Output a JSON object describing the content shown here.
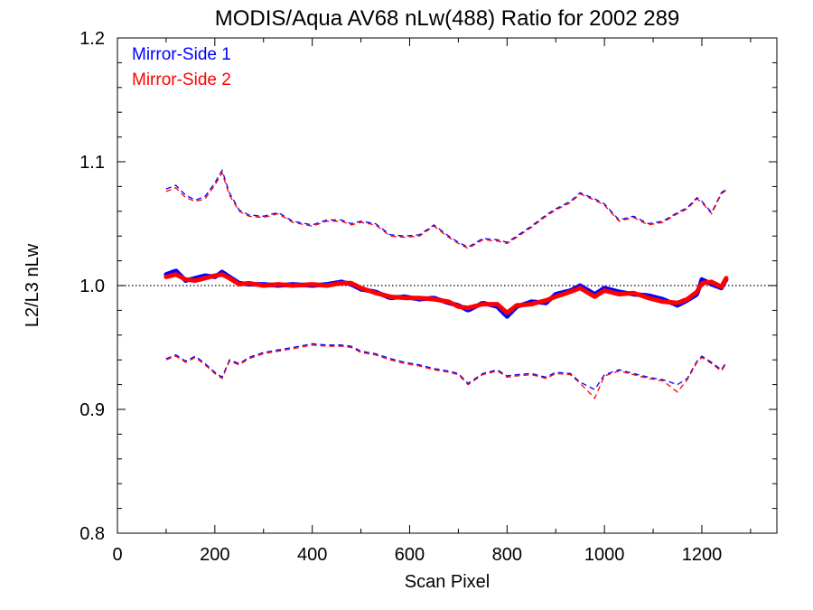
{
  "chart_data": {
    "type": "line",
    "title": "MODIS/Aqua AV68 nLw(488) Ratio for 2002 289",
    "xlabel": "Scan Pixel",
    "ylabel": "L2/L3 nLw",
    "xlim": [
      0,
      1354
    ],
    "ylim": [
      0.8,
      1.2
    ],
    "x_ticks": [
      "0",
      "200",
      "400",
      "600",
      "800",
      "1000",
      "1200"
    ],
    "y_ticks": [
      "0.8",
      "0.9",
      "1.0",
      "1.1",
      "1.2"
    ],
    "reference_line": 1.0,
    "legend_placement": "top-left",
    "colors": {
      "mirror_side_1": "#0000ff",
      "mirror_side_2": "#ff0000"
    },
    "series": [
      {
        "name": "Mirror-Side 1",
        "color": "#0000ff",
        "x": [
          100,
          120,
          140,
          160,
          180,
          200,
          215,
          230,
          250,
          270,
          300,
          330,
          360,
          400,
          430,
          460,
          480,
          500,
          530,
          560,
          590,
          620,
          650,
          680,
          700,
          720,
          750,
          780,
          800,
          820,
          850,
          880,
          900,
          930,
          950,
          980,
          1000,
          1030,
          1060,
          1090,
          1120,
          1150,
          1170,
          1190,
          1200,
          1220,
          1240,
          1250
        ],
        "mean": [
          1.009,
          1.012,
          1.004,
          1.006,
          1.008,
          1.007,
          1.011,
          1.007,
          1.002,
          1.001,
          1.001,
          1.0,
          1.001,
          1.0,
          1.001,
          1.003,
          1.001,
          0.997,
          0.995,
          0.99,
          0.991,
          0.989,
          0.99,
          0.986,
          0.984,
          0.98,
          0.986,
          0.983,
          0.975,
          0.983,
          0.987,
          0.986,
          0.993,
          0.996,
          1.0,
          0.993,
          0.998,
          0.995,
          0.993,
          0.992,
          0.989,
          0.984,
          0.988,
          0.993,
          1.005,
          1.001,
          0.998,
          1.005
        ],
        "upper": [
          1.078,
          1.081,
          1.073,
          1.069,
          1.072,
          1.083,
          1.093,
          1.075,
          1.061,
          1.057,
          1.056,
          1.059,
          1.052,
          1.049,
          1.053,
          1.053,
          1.05,
          1.052,
          1.05,
          1.041,
          1.04,
          1.041,
          1.049,
          1.04,
          1.035,
          1.031,
          1.038,
          1.037,
          1.035,
          1.04,
          1.048,
          1.057,
          1.062,
          1.068,
          1.075,
          1.07,
          1.066,
          1.053,
          1.056,
          1.05,
          1.052,
          1.059,
          1.063,
          1.071,
          1.068,
          1.059,
          1.075,
          1.078
        ],
        "lower": [
          0.941,
          0.944,
          0.939,
          0.943,
          0.937,
          0.93,
          0.926,
          0.94,
          0.937,
          0.942,
          0.946,
          0.948,
          0.95,
          0.953,
          0.952,
          0.952,
          0.951,
          0.947,
          0.945,
          0.941,
          0.938,
          0.936,
          0.933,
          0.931,
          0.929,
          0.921,
          0.929,
          0.932,
          0.927,
          0.928,
          0.929,
          0.926,
          0.93,
          0.929,
          0.922,
          0.916,
          0.928,
          0.932,
          0.929,
          0.926,
          0.924,
          0.92,
          0.925,
          0.939,
          0.943,
          0.938,
          0.932,
          0.938
        ]
      },
      {
        "name": "Mirror-Side 2",
        "color": "#ff0000",
        "x": [
          100,
          120,
          140,
          160,
          180,
          200,
          215,
          230,
          250,
          270,
          300,
          330,
          360,
          400,
          430,
          460,
          480,
          500,
          530,
          560,
          590,
          620,
          650,
          680,
          700,
          720,
          750,
          780,
          800,
          820,
          850,
          880,
          900,
          930,
          950,
          980,
          1000,
          1030,
          1060,
          1090,
          1120,
          1150,
          1170,
          1190,
          1200,
          1220,
          1240,
          1250
        ],
        "mean": [
          1.007,
          1.009,
          1.005,
          1.004,
          1.006,
          1.008,
          1.009,
          1.006,
          1.001,
          1.002,
          1.0,
          1.001,
          1.0,
          1.001,
          1.0,
          1.002,
          1.002,
          0.998,
          0.994,
          0.991,
          0.99,
          0.99,
          0.989,
          0.987,
          0.983,
          0.982,
          0.985,
          0.985,
          0.978,
          0.984,
          0.985,
          0.988,
          0.991,
          0.995,
          0.998,
          0.991,
          0.996,
          0.993,
          0.994,
          0.99,
          0.987,
          0.986,
          0.989,
          0.995,
          1.002,
          1.003,
          0.999,
          1.006
        ],
        "upper": [
          1.076,
          1.079,
          1.071,
          1.068,
          1.07,
          1.081,
          1.091,
          1.073,
          1.06,
          1.056,
          1.055,
          1.058,
          1.051,
          1.048,
          1.052,
          1.052,
          1.049,
          1.051,
          1.049,
          1.04,
          1.039,
          1.04,
          1.048,
          1.039,
          1.034,
          1.03,
          1.037,
          1.036,
          1.034,
          1.039,
          1.047,
          1.056,
          1.061,
          1.067,
          1.074,
          1.069,
          1.065,
          1.052,
          1.055,
          1.049,
          1.051,
          1.058,
          1.062,
          1.07,
          1.067,
          1.058,
          1.074,
          1.077
        ],
        "lower": [
          0.94,
          0.943,
          0.938,
          0.942,
          0.936,
          0.929,
          0.925,
          0.939,
          0.936,
          0.941,
          0.945,
          0.947,
          0.949,
          0.952,
          0.951,
          0.951,
          0.95,
          0.946,
          0.944,
          0.94,
          0.937,
          0.935,
          0.932,
          0.93,
          0.928,
          0.92,
          0.928,
          0.931,
          0.926,
          0.927,
          0.928,
          0.925,
          0.929,
          0.928,
          0.921,
          0.909,
          0.927,
          0.931,
          0.928,
          0.925,
          0.923,
          0.914,
          0.924,
          0.938,
          0.942,
          0.937,
          0.931,
          0.937
        ]
      }
    ]
  }
}
